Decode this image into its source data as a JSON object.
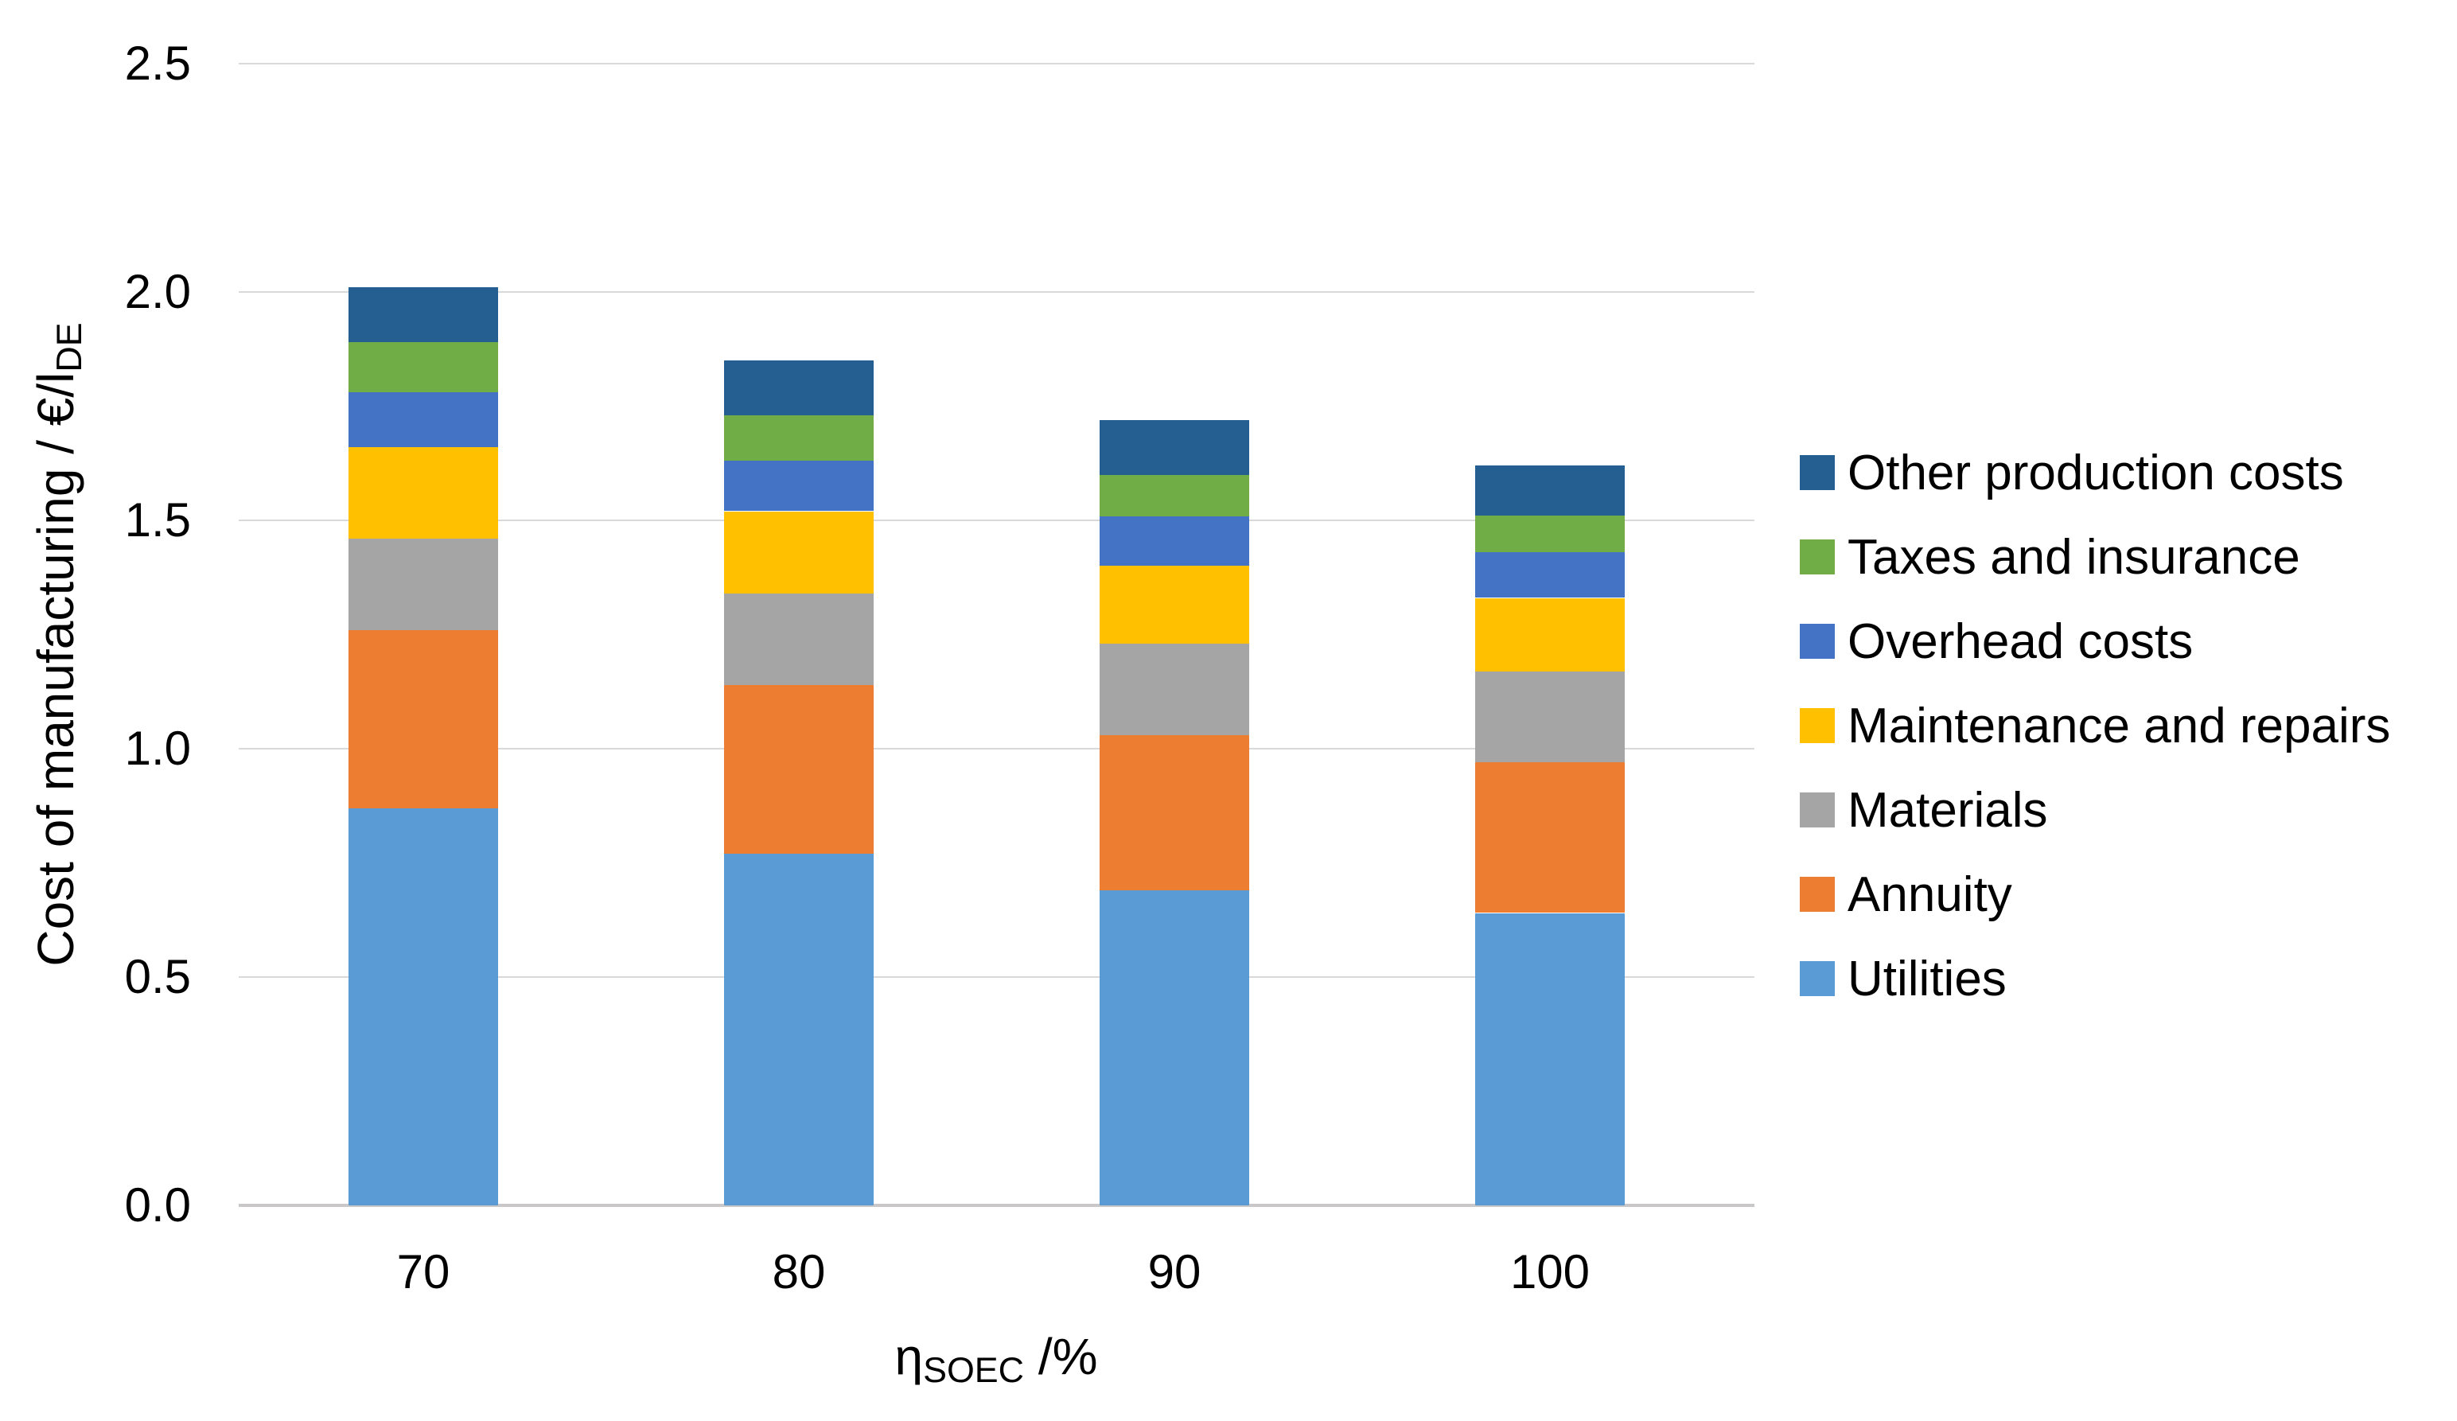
{
  "chart_data": {
    "type": "bar",
    "stacked": true,
    "title": "",
    "xlabel": "ηSOEC /%",
    "xlabel_parts": {
      "symbol": "η",
      "subscript": "SOEC",
      "suffix": " /%"
    },
    "ylabel": "Cost of manufacturing / €/lDE",
    "ylabel_parts": {
      "prefix": "Cost of manufacturing / €/l",
      "subscript": "DE"
    },
    "categories": [
      "70",
      "80",
      "90",
      "100"
    ],
    "series": [
      {
        "name": "Utilities",
        "color": "#5B9BD5",
        "values": [
          0.87,
          0.77,
          0.69,
          0.64
        ]
      },
      {
        "name": "Annuity",
        "color": "#ED7D31",
        "values": [
          0.39,
          0.37,
          0.34,
          0.33
        ]
      },
      {
        "name": "Materials",
        "color": "#A5A5A5",
        "values": [
          0.2,
          0.2,
          0.2,
          0.2
        ]
      },
      {
        "name": "Maintenance and repairs",
        "color": "#FFC000",
        "values": [
          0.2,
          0.18,
          0.17,
          0.16
        ]
      },
      {
        "name": "Overhead costs",
        "color": "#4472C4",
        "values": [
          0.12,
          0.11,
          0.11,
          0.1
        ]
      },
      {
        "name": "Taxes and insurance",
        "color": "#70AD47",
        "values": [
          0.11,
          0.1,
          0.09,
          0.08
        ]
      },
      {
        "name": "Other production costs",
        "color": "#255E91",
        "values": [
          0.12,
          0.12,
          0.12,
          0.11
        ]
      }
    ],
    "bar_totals": [
      2.01,
      1.85,
      1.72,
      1.62
    ],
    "y_ticks": [
      "0.0",
      "0.5",
      "1.0",
      "1.5",
      "2.0",
      "2.5"
    ],
    "ylim": [
      0,
      2.5
    ],
    "grid": true,
    "legend_position": "right",
    "legend_order_top_to_bottom": [
      "Other production costs",
      "Taxes and insurance",
      "Overhead costs",
      "Maintenance and repairs",
      "Materials",
      "Annuity",
      "Utilities"
    ]
  },
  "colors": {
    "background": "#FFFFFF",
    "gridline": "#D9D9D9",
    "axis_line": "#C9C7C7",
    "text": "#000000"
  }
}
